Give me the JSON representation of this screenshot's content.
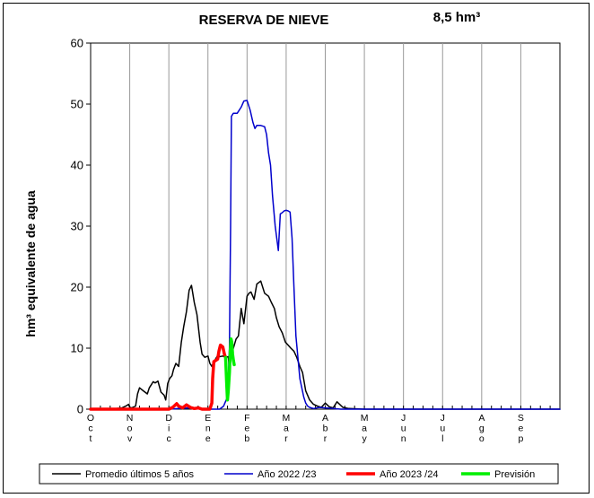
{
  "chart_data": {
    "type": "line",
    "title": "RESERVA DE NIEVE",
    "current_value": "8,5 hm³",
    "ylabel": "hm³ equivalente de agua",
    "xlabel": "",
    "ylim": [
      0,
      60
    ],
    "yticks": [
      0,
      10,
      20,
      30,
      40,
      50,
      60
    ],
    "months": [
      "Oct",
      "Nov",
      "Dic",
      "Ene",
      "Feb",
      "Mar",
      "Abr",
      "May",
      "Jun",
      "Jul",
      "Ago",
      "Sep"
    ],
    "x_unit": "months since 1 Oct",
    "grid": true,
    "legend_position": "bottom",
    "series": [
      {
        "name": "Promedio últimos 5 años",
        "color": "#000000",
        "width": 1.5,
        "x": [
          0,
          0.5,
          0.8,
          0.9,
          0.97,
          1.0,
          1.05,
          1.15,
          1.2,
          1.25,
          1.35,
          1.45,
          1.5,
          1.55,
          1.6,
          1.65,
          1.72,
          1.8,
          1.88,
          1.92,
          1.97,
          2.02,
          2.08,
          2.12,
          2.18,
          2.25,
          2.32,
          2.38,
          2.45,
          2.52,
          2.58,
          2.65,
          2.72,
          2.8,
          2.85,
          2.92,
          3.0,
          3.05,
          3.1,
          3.15,
          3.2,
          3.25,
          3.3,
          3.38,
          3.45,
          3.52,
          3.55,
          3.6,
          3.65,
          3.72,
          3.78,
          3.85,
          3.92,
          4.0,
          4.05,
          4.1,
          4.18,
          4.25,
          4.35,
          4.45,
          4.55,
          4.62,
          4.7,
          4.75,
          4.82,
          4.9,
          4.98,
          5.05,
          5.12,
          5.2,
          5.27,
          5.35,
          5.42,
          5.5,
          5.6,
          5.7,
          5.8,
          5.9,
          6.0,
          6.1,
          6.2,
          6.3,
          6.45,
          6.6,
          7.0,
          12.0
        ],
        "y": [
          0,
          0,
          0.2,
          0.5,
          0.8,
          0.3,
          0.2,
          0.5,
          2.5,
          3.5,
          3.0,
          2.5,
          3.5,
          4.0,
          4.5,
          4.3,
          4.6,
          2.8,
          2.3,
          1.5,
          4.2,
          5.0,
          5.5,
          6.5,
          7.5,
          7.0,
          11.0,
          13.5,
          16.0,
          19.5,
          20.3,
          17.5,
          15.5,
          11.0,
          9.0,
          8.5,
          8.7,
          7.5,
          7.0,
          7.8,
          8.3,
          8.8,
          8.6,
          8.7,
          8.5,
          8.6,
          6.5,
          9.0,
          10.0,
          11.5,
          12.0,
          16.5,
          14.0,
          18.5,
          19.0,
          19.2,
          18.0,
          20.5,
          21.0,
          19.0,
          18.5,
          17.5,
          16.5,
          15.0,
          13.5,
          12.5,
          11.0,
          10.5,
          10.0,
          9.5,
          8.5,
          7.0,
          6.0,
          3.0,
          1.5,
          0.8,
          0.5,
          0.3,
          1.0,
          0.4,
          0.2,
          1.2,
          0.3,
          0.1,
          0,
          0
        ]
      },
      {
        "name": "Año 2022 /23",
        "color": "#0000cc",
        "width": 1.5,
        "x": [
          0,
          2.0,
          2.5,
          3.0,
          3.3,
          3.4,
          3.5,
          3.55,
          3.58,
          3.6,
          3.65,
          3.75,
          3.85,
          3.92,
          4.0,
          4.08,
          4.15,
          4.2,
          4.25,
          4.3,
          4.35,
          4.45,
          4.5,
          4.55,
          4.6,
          4.65,
          4.72,
          4.8,
          4.85,
          4.9,
          4.95,
          5.0,
          5.05,
          5.1,
          5.15,
          5.2,
          5.25,
          5.35,
          5.45,
          5.5,
          5.55,
          5.6,
          5.7,
          5.85,
          6.0,
          6.2,
          6.4,
          7.0,
          12.0
        ],
        "y": [
          0,
          0,
          0.2,
          0,
          0,
          0.5,
          2.0,
          10.0,
          30.0,
          48.0,
          48.5,
          48.5,
          49.5,
          50.5,
          50.6,
          49.0,
          47.0,
          46.0,
          46.5,
          46.5,
          46.5,
          46.3,
          45.0,
          42.0,
          40.0,
          35.0,
          30.0,
          26.0,
          32.0,
          32.2,
          32.5,
          32.6,
          32.5,
          32.3,
          28.0,
          20.0,
          12.0,
          5.0,
          2.0,
          1.0,
          0.5,
          0.3,
          0.1,
          0.3,
          0.2,
          0.1,
          0,
          0,
          0
        ]
      },
      {
        "name": "Año 2023 /24",
        "color": "#ff0000",
        "width": 3.5,
        "x": [
          0,
          1.0,
          2.0,
          2.1,
          2.2,
          2.25,
          2.35,
          2.45,
          2.55,
          2.65,
          2.75,
          2.85,
          3.0,
          3.05,
          3.1,
          3.12,
          3.15,
          3.2,
          3.25,
          3.28,
          3.32,
          3.38,
          3.42,
          3.45
        ],
        "y": [
          0,
          0,
          0,
          0.3,
          0.9,
          0.5,
          0.2,
          0.7,
          0.3,
          0.1,
          0.2,
          0,
          0,
          0,
          1.0,
          5.0,
          7.8,
          8.0,
          8.2,
          9.5,
          10.5,
          10.2,
          9.0,
          8.5
        ]
      },
      {
        "name": "Previsión",
        "color": "#00ee00",
        "width": 3.5,
        "x": [
          3.45,
          3.48,
          3.5,
          3.52,
          3.55,
          3.57,
          3.59,
          3.61,
          3.63,
          3.65,
          3.67
        ],
        "y": [
          8.5,
          4.0,
          1.5,
          3.0,
          6.0,
          9.5,
          11.5,
          11.0,
          9.0,
          8.0,
          7.3
        ]
      }
    ]
  }
}
